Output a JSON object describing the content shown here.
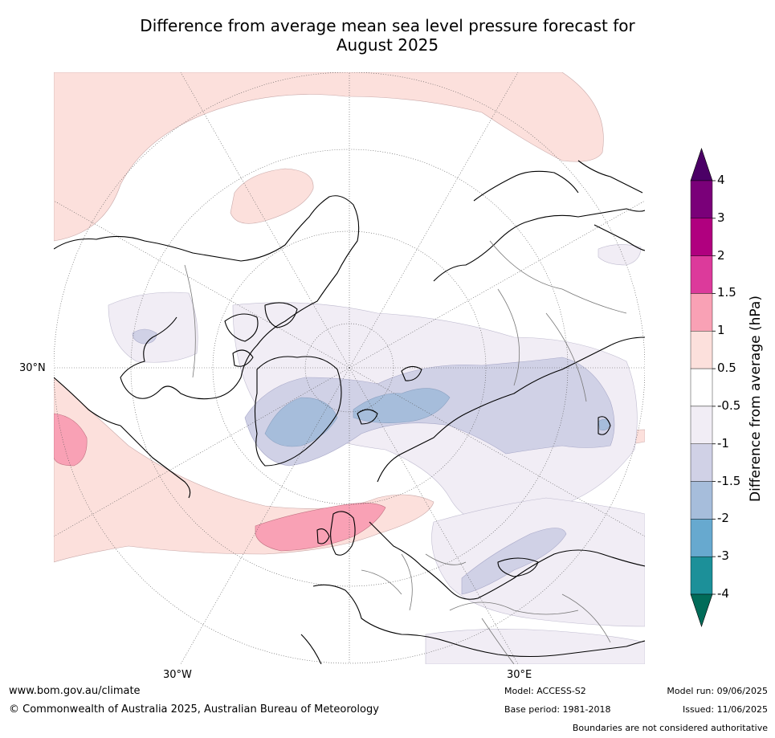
{
  "title_line1": "Difference from average mean sea level pressure forecast for",
  "title_line2": "August 2025",
  "axis_labels": {
    "lat30n": "30°N",
    "lon30w": "30°W",
    "lon30e": "30°E"
  },
  "colorbar": {
    "title": "Difference from average (hPa)",
    "ticks": [
      "4",
      "3",
      "2",
      "1.5",
      "1",
      "0.5",
      "-0.5",
      "-1",
      "-1.5",
      "-2",
      "-3",
      "-4"
    ],
    "colors": [
      "#4b0066",
      "#7a0079",
      "#b0007f",
      "#dc3a9b",
      "#f9a1b5",
      "#fce0dc",
      "#ffffff",
      "#f1edf5",
      "#d0d1e6",
      "#a6bddb",
      "#67a9cf",
      "#1c9099",
      "#016c59"
    ]
  },
  "footer": {
    "url": "www.bom.gov.au/climate",
    "copyright": "© Commonwealth of Australia 2025, Australian Bureau of Meteorology",
    "model": "Model: ACCESS-S2",
    "base_period": "Base period: 1981-2018",
    "model_run": "Model run: 09/06/2025",
    "issued": "Issued: 11/06/2025",
    "disclaimer": "Boundaries are not considered authoritative"
  }
}
